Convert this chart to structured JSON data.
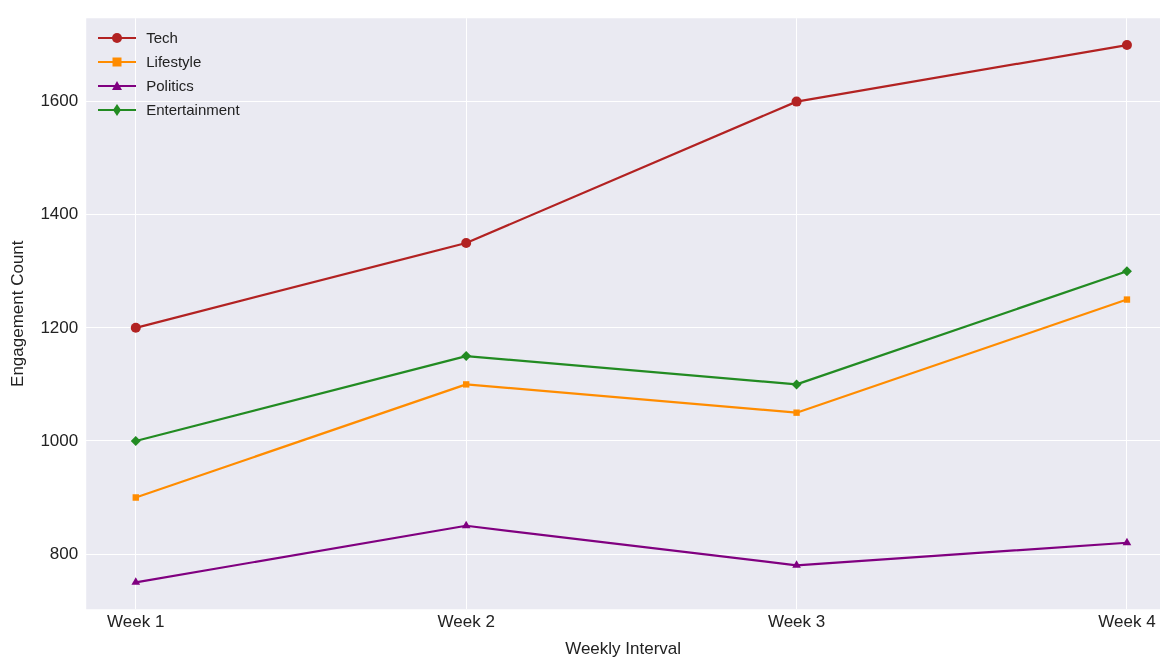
{
  "chart_data": {
    "type": "line",
    "xlabel": "Weekly Interval",
    "ylabel": "Engagement Count",
    "categories": [
      "Week 1",
      "Week 2",
      "Week 3",
      "Week 4"
    ],
    "series": [
      {
        "name": "Tech",
        "color": "#b22222",
        "marker": "circle",
        "values": [
          1200,
          1350,
          1600,
          1700
        ]
      },
      {
        "name": "Lifestyle",
        "color": "#ff8c00",
        "marker": "square",
        "values": [
          900,
          1100,
          1050,
          1250
        ]
      },
      {
        "name": "Politics",
        "color": "#800080",
        "marker": "triangle",
        "values": [
          750,
          850,
          780,
          820
        ]
      },
      {
        "name": "Entertainment",
        "color": "#228b22",
        "marker": "diamond",
        "values": [
          1000,
          1150,
          1100,
          1300
        ]
      }
    ],
    "ylim": [
      702.5,
      1747.5
    ],
    "yticks": [
      800,
      1000,
      1200,
      1400,
      1600
    ],
    "grid": true,
    "legend": "top left",
    "line_style": "solid"
  }
}
